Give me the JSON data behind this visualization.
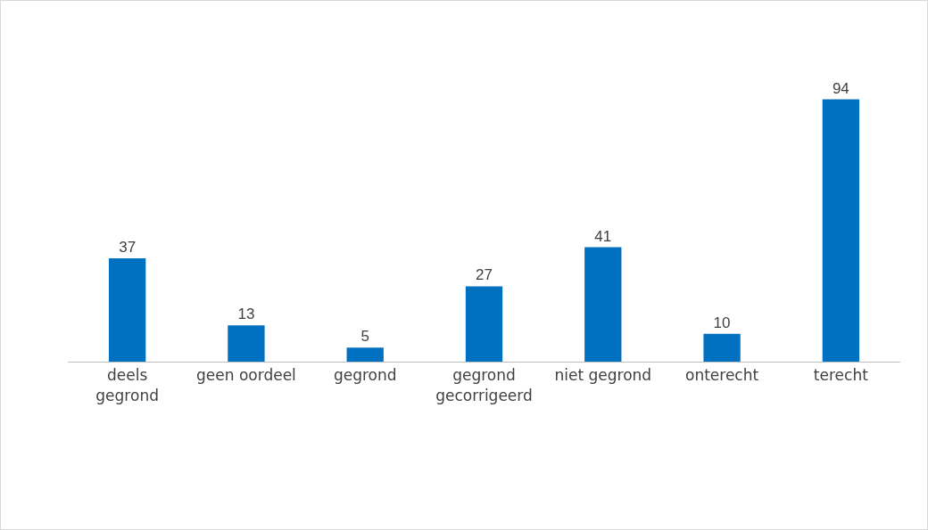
{
  "chart_data": {
    "type": "bar",
    "categories": [
      "deels gegrond",
      "geen oordeel",
      "gegrond",
      "gegrond gecorrigeerd",
      "niet gegrond",
      "onterecht",
      "terecht"
    ],
    "values": [
      37,
      13,
      5,
      27,
      41,
      10,
      94
    ],
    "color": "#0070c0",
    "data_labels": true,
    "legend": false
  }
}
